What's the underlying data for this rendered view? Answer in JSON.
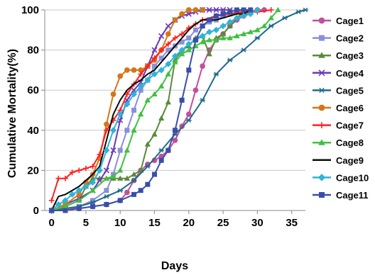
{
  "chart_data": {
    "type": "line",
    "xlabel": "Days",
    "ylabel": "Cumulative Mortality(%)",
    "xlim": [
      -1,
      37
    ],
    "ylim": [
      0,
      100
    ],
    "xticks": [
      0,
      5,
      10,
      15,
      20,
      25,
      30,
      35
    ],
    "yticks": [
      0,
      20,
      40,
      60,
      80,
      100
    ],
    "grid": "horizontal",
    "legend_position": "right",
    "series": [
      {
        "name": "Cage1",
        "color": "#c0509b",
        "marker": "circle",
        "x": [
          0,
          2,
          4,
          6,
          8,
          10,
          11,
          12,
          13,
          14,
          15,
          16,
          17,
          18,
          19,
          20,
          21,
          22,
          23,
          24,
          25,
          26,
          27,
          28,
          29,
          30,
          31
        ],
        "y": [
          0,
          1,
          1,
          2,
          3,
          5,
          9,
          15,
          20,
          23,
          25,
          27,
          30,
          35,
          42,
          48,
          60,
          72,
          80,
          85,
          88,
          92,
          95,
          97,
          99,
          100,
          100
        ]
      },
      {
        "name": "Cage2",
        "color": "#8a8fd8",
        "marker": "square",
        "x": [
          0,
          2,
          4,
          6,
          8,
          9,
          10,
          11,
          12,
          13,
          14,
          15,
          16,
          17,
          18,
          19,
          20,
          21,
          22,
          23,
          24,
          25,
          26,
          27,
          28
        ],
        "y": [
          0,
          1,
          2,
          5,
          10,
          18,
          30,
          40,
          50,
          60,
          65,
          72,
          76,
          80,
          82,
          84,
          86,
          90,
          92,
          94,
          95,
          97,
          98,
          99,
          100
        ]
      },
      {
        "name": "Cage3",
        "color": "#5a8a3a",
        "marker": "triangle",
        "x": [
          0,
          2,
          4,
          5,
          6,
          7,
          8,
          9,
          10,
          11,
          12,
          13,
          14,
          15,
          16,
          17,
          18,
          19,
          20,
          21,
          22,
          23,
          24,
          25,
          26,
          27,
          28,
          29
        ],
        "y": [
          0,
          2,
          5,
          12,
          16,
          16,
          16,
          16,
          16,
          16,
          18,
          20,
          33,
          38,
          46,
          54,
          75,
          80,
          82,
          86,
          87,
          78,
          86,
          88,
          92,
          96,
          99,
          100
        ]
      },
      {
        "name": "Cage4",
        "color": "#6a38b8",
        "marker": "x",
        "x": [
          0,
          2,
          4,
          6,
          7,
          8,
          9,
          10,
          11,
          12,
          13,
          14,
          15,
          16,
          17,
          18,
          19,
          20,
          21,
          22,
          23,
          24,
          25,
          26
        ],
        "y": [
          0,
          3,
          6,
          10,
          15,
          20,
          30,
          45,
          55,
          60,
          64,
          72,
          80,
          87,
          92,
          95,
          97,
          98,
          99,
          100,
          100,
          100,
          100,
          100
        ]
      },
      {
        "name": "Cage5",
        "color": "#1f6a8c",
        "marker": "star",
        "x": [
          0,
          2,
          4,
          6,
          8,
          10,
          12,
          14,
          16,
          18,
          20,
          22,
          24,
          26,
          28,
          30,
          32,
          34,
          36,
          37
        ],
        "y": [
          0,
          1,
          2,
          4,
          7,
          10,
          15,
          22,
          30,
          38,
          45,
          55,
          68,
          75,
          80,
          86,
          92,
          96,
          99,
          100
        ]
      },
      {
        "name": "Cage6",
        "color": "#d4761a",
        "marker": "circle",
        "x": [
          0,
          2,
          4,
          5,
          6,
          7,
          8,
          9,
          10,
          11,
          12,
          13,
          14,
          15,
          16,
          17,
          18,
          19,
          20,
          21,
          22
        ],
        "y": [
          0,
          3,
          8,
          14,
          18,
          26,
          43,
          58,
          67,
          70,
          70,
          70,
          72,
          75,
          80,
          88,
          95,
          98,
          100,
          100,
          100
        ]
      },
      {
        "name": "Cage7",
        "color": "#ff2020",
        "marker": "plus",
        "x": [
          0,
          1,
          2,
          3,
          4,
          5,
          6,
          7,
          8,
          9,
          10,
          11,
          12,
          13,
          14,
          15,
          16,
          17,
          18,
          19,
          20,
          21,
          22,
          24,
          26,
          28,
          30,
          32
        ],
        "y": [
          5,
          16,
          16,
          19,
          20,
          21,
          22,
          28,
          40,
          45,
          50,
          58,
          63,
          68,
          72,
          76,
          80,
          83,
          86,
          88,
          91,
          93,
          95,
          97,
          98,
          99,
          99,
          100
        ]
      },
      {
        "name": "Cage8",
        "color": "#40c040",
        "marker": "triangle",
        "x": [
          0,
          2,
          4,
          6,
          8,
          9,
          10,
          11,
          12,
          13,
          14,
          15,
          16,
          17,
          18,
          19,
          20,
          21,
          22,
          23,
          24,
          25,
          26,
          27,
          28,
          29,
          30,
          31,
          32,
          33
        ],
        "y": [
          0,
          2,
          5,
          10,
          16,
          17,
          20,
          30,
          40,
          48,
          55,
          58,
          62,
          68,
          74,
          78,
          80,
          82,
          84,
          85,
          85,
          86,
          86,
          87,
          88,
          89,
          90,
          92,
          96,
          100
        ]
      },
      {
        "name": "Cage9",
        "color": "#0a0a0a",
        "marker": "none",
        "x": [
          0,
          1,
          2,
          3,
          4,
          5,
          6,
          7,
          8,
          9,
          10,
          11,
          12,
          13,
          14,
          15,
          16,
          17,
          18,
          19,
          20,
          21,
          22,
          23,
          24,
          25,
          26,
          27,
          28,
          29
        ],
        "y": [
          0,
          7,
          8,
          10,
          12,
          15,
          18,
          22,
          35,
          48,
          55,
          60,
          63,
          65,
          68,
          70,
          74,
          78,
          82,
          86,
          90,
          93,
          95,
          95,
          95,
          96,
          97,
          98,
          98,
          100
        ]
      },
      {
        "name": "Cage10",
        "color": "#2fb3d6",
        "marker": "diamond",
        "x": [
          0,
          1,
          2,
          3,
          4,
          5,
          6,
          7,
          8,
          9,
          10,
          11,
          12,
          13,
          14,
          15,
          16,
          17,
          18,
          19,
          20,
          21,
          22,
          23,
          24,
          25,
          26,
          27,
          28,
          29,
          30
        ],
        "y": [
          0,
          3,
          5,
          8,
          10,
          12,
          14,
          20,
          30,
          40,
          48,
          53,
          58,
          62,
          65,
          68,
          70,
          73,
          77,
          80,
          83,
          85,
          87,
          89,
          90,
          92,
          94,
          96,
          97,
          98,
          100
        ]
      },
      {
        "name": "Cage11",
        "color": "#3a4ea8",
        "marker": "square",
        "x": [
          0,
          2,
          4,
          6,
          8,
          10,
          12,
          13,
          14,
          15,
          16,
          17,
          18,
          19,
          20,
          21,
          22,
          23,
          24,
          25,
          26,
          27,
          28,
          29
        ],
        "y": [
          0,
          0,
          1,
          2,
          3,
          5,
          8,
          10,
          13,
          18,
          25,
          30,
          40,
          55,
          70,
          85,
          92,
          95,
          97,
          98,
          99,
          100,
          100,
          100
        ]
      }
    ]
  }
}
